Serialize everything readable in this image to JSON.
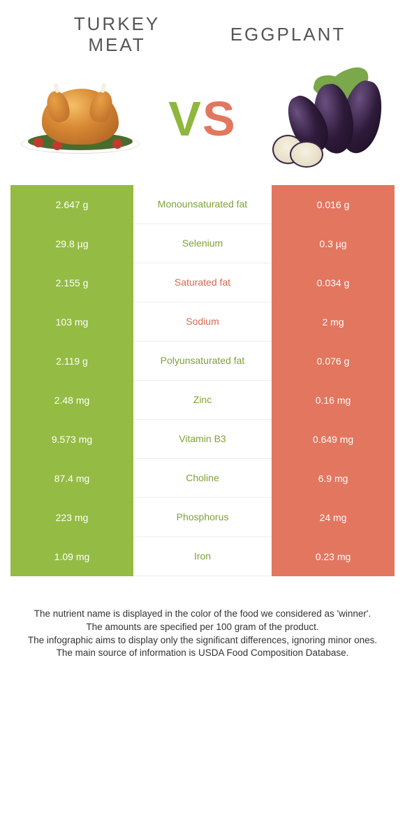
{
  "header": {
    "left_title_line1": "TURKEY",
    "left_title_line2": "MEAT",
    "right_title": "EGGPLANT",
    "vs_letter1": "V",
    "vs_letter2": "S"
  },
  "colors": {
    "green_col": "#94bb44",
    "orange_col": "#e2765f",
    "green_text": "#7da236",
    "orange_text": "#d56850",
    "row_border": "#eeeeee",
    "title_text": "#555555",
    "footer_text": "#333333"
  },
  "rows": [
    {
      "left": "2.647 g",
      "label": "Monounsaturated fat",
      "right": "0.016 g",
      "winner": "left"
    },
    {
      "left": "29.8 µg",
      "label": "Selenium",
      "right": "0.3 µg",
      "winner": "left"
    },
    {
      "left": "2.155 g",
      "label": "Saturated fat",
      "right": "0.034 g",
      "winner": "right"
    },
    {
      "left": "103 mg",
      "label": "Sodium",
      "right": "2 mg",
      "winner": "right"
    },
    {
      "left": "2.119 g",
      "label": "Polyunsaturated fat",
      "right": "0.076 g",
      "winner": "left"
    },
    {
      "left": "2.48 mg",
      "label": "Zinc",
      "right": "0.16 mg",
      "winner": "left"
    },
    {
      "left": "9.573 mg",
      "label": "Vitamin B3",
      "right": "0.649 mg",
      "winner": "left"
    },
    {
      "left": "87.4 mg",
      "label": "Choline",
      "right": "6.9 mg",
      "winner": "left"
    },
    {
      "left": "223 mg",
      "label": "Phosphorus",
      "right": "24 mg",
      "winner": "left"
    },
    {
      "left": "1.09 mg",
      "label": "Iron",
      "right": "0.23 mg",
      "winner": "left"
    }
  ],
  "footer": {
    "line1": "The nutrient name is displayed in the color of the food we considered as 'winner'.",
    "line2": "The amounts are specified per 100 gram of the product.",
    "line3": "The infographic aims to display only the significant differences, ignoring minor ones.",
    "line4": "The main source of information is USDA Food Composition Database."
  }
}
